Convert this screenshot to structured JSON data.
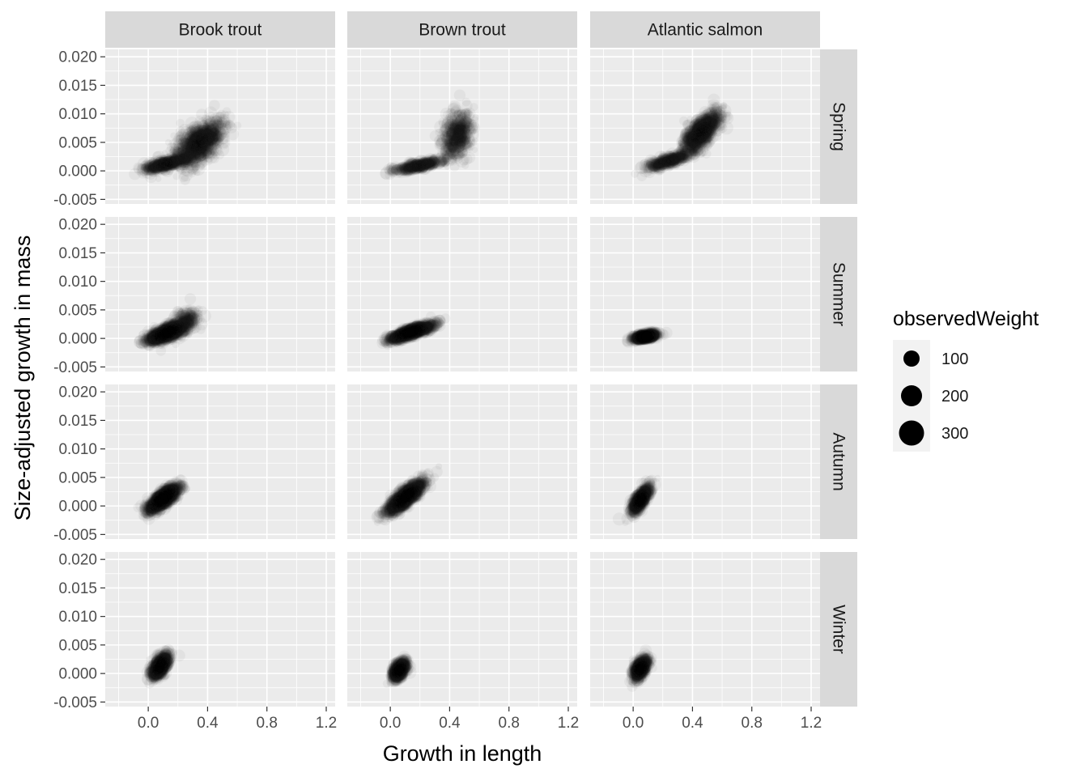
{
  "chart_data": {
    "type": "scatter",
    "facet_layout": "grid",
    "xlabel": "Growth in length",
    "ylabel": "Size-adjusted growth in mass",
    "xlim": [
      -0.29,
      1.26
    ],
    "ylim": [
      -0.0058,
      0.0213
    ],
    "x_ticks": [
      0.0,
      0.4,
      0.8,
      1.2
    ],
    "x_tick_labels": [
      "0.0",
      "0.4",
      "0.8",
      "1.2"
    ],
    "y_ticks": [
      -0.005,
      0.0,
      0.005,
      0.01,
      0.015,
      0.02
    ],
    "y_tick_labels": [
      "-0.005",
      "0.000",
      "0.005",
      "0.010",
      "0.015",
      "0.020"
    ],
    "columns": [
      "Brook trout",
      "Brown trout",
      "Atlantic salmon"
    ],
    "rows": [
      "Spring",
      "Summer",
      "Autumn",
      "Winter"
    ],
    "point_alpha": "low (heavy overplotting)",
    "grid": true,
    "legend": {
      "title": "observedWeight",
      "placement": "right",
      "entries": [
        {
          "label": "100",
          "value": 100
        },
        {
          "label": "200",
          "value": 200
        },
        {
          "label": "300",
          "value": 300
        }
      ]
    },
    "colors": {
      "panel_bg": "#ebebeb",
      "strip_bg": "#d9d9d9",
      "grid": "#ffffff",
      "points": "#1a1a1a"
    },
    "panels": [
      {
        "row": "Spring",
        "column": "Brook trout",
        "clusters": [
          {
            "x": 0.34,
            "y": 0.0048,
            "sx": 0.08,
            "sy": 0.0019,
            "rho": 0.6,
            "n": 1200
          },
          {
            "x": 0.12,
            "y": 0.0012,
            "sx": 0.07,
            "sy": 0.0006,
            "rho": 0.7,
            "n": 600
          }
        ]
      },
      {
        "row": "Spring",
        "column": "Brown trout",
        "clusters": [
          {
            "x": 0.45,
            "y": 0.0062,
            "sx": 0.05,
            "sy": 0.002,
            "rho": 0.3,
            "n": 600
          },
          {
            "x": 0.19,
            "y": 0.0009,
            "sx": 0.08,
            "sy": 0.0005,
            "rho": 0.8,
            "n": 500
          }
        ]
      },
      {
        "row": "Spring",
        "column": "Atlantic salmon",
        "clusters": [
          {
            "x": 0.46,
            "y": 0.0068,
            "sx": 0.06,
            "sy": 0.0017,
            "rho": 0.7,
            "n": 1100
          },
          {
            "x": 0.24,
            "y": 0.0018,
            "sx": 0.08,
            "sy": 0.0008,
            "rho": 0.85,
            "n": 500
          }
        ]
      },
      {
        "row": "Summer",
        "column": "Brook trout",
        "clusters": [
          {
            "x": 0.12,
            "y": 0.0009,
            "sx": 0.06,
            "sy": 0.0008,
            "rho": 0.7,
            "n": 1300
          },
          {
            "x": 0.24,
            "y": 0.0028,
            "sx": 0.05,
            "sy": 0.0011,
            "rho": 0.5,
            "n": 300
          }
        ]
      },
      {
        "row": "Summer",
        "column": "Brown trout",
        "clusters": [
          {
            "x": 0.14,
            "y": 0.0011,
            "sx": 0.07,
            "sy": 0.0007,
            "rho": 0.85,
            "n": 1400
          }
        ]
      },
      {
        "row": "Summer",
        "column": "Atlantic salmon",
        "clusters": [
          {
            "x": 0.08,
            "y": 0.0003,
            "sx": 0.04,
            "sy": 0.0003,
            "rho": 0.6,
            "n": 1000
          }
        ]
      },
      {
        "row": "Autumn",
        "column": "Brook trout",
        "clusters": [
          {
            "x": 0.1,
            "y": 0.0013,
            "sx": 0.05,
            "sy": 0.0011,
            "rho": 0.8,
            "n": 1500
          }
        ]
      },
      {
        "row": "Autumn",
        "column": "Brown trout",
        "clusters": [
          {
            "x": 0.1,
            "y": 0.0015,
            "sx": 0.06,
            "sy": 0.0014,
            "rho": 0.85,
            "n": 1500
          }
        ]
      },
      {
        "row": "Autumn",
        "column": "Atlantic salmon",
        "clusters": [
          {
            "x": 0.05,
            "y": 0.0011,
            "sx": 0.03,
            "sy": 0.0011,
            "rho": 0.75,
            "n": 900
          }
        ]
      },
      {
        "row": "Winter",
        "column": "Brook trout",
        "clusters": [
          {
            "x": 0.08,
            "y": 0.0013,
            "sx": 0.03,
            "sy": 0.001,
            "rho": 0.6,
            "n": 900
          }
        ]
      },
      {
        "row": "Winter",
        "column": "Brown trout",
        "clusters": [
          {
            "x": 0.06,
            "y": 0.0006,
            "sx": 0.025,
            "sy": 0.0008,
            "rho": 0.5,
            "n": 800
          }
        ]
      },
      {
        "row": "Winter",
        "column": "Atlantic salmon",
        "clusters": [
          {
            "x": 0.05,
            "y": 0.0009,
            "sx": 0.025,
            "sy": 0.0009,
            "rho": 0.6,
            "n": 800
          }
        ]
      }
    ]
  }
}
